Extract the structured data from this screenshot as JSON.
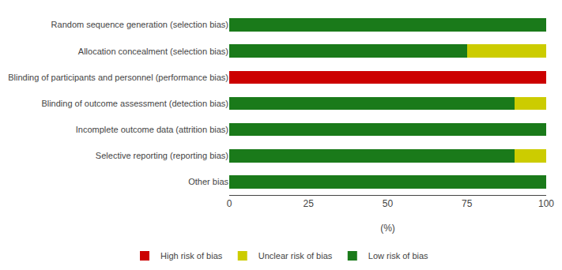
{
  "chart_data": {
    "type": "bar",
    "orientation": "horizontal",
    "stacked": true,
    "categories": [
      "Random sequence generation (selection bias)",
      "Allocation concealment (selection bias)",
      "Blinding of participants and personnel (performance bias)",
      "Blinding of outcome assessment (detection bias)",
      "Incomplete outcome data (attrition bias)",
      "Selective reporting (reporting bias)",
      "Other bias"
    ],
    "series": [
      {
        "name": "Low risk of bias",
        "color": "#1a7a1a",
        "values": [
          100,
          75,
          0,
          90,
          100,
          90,
          100
        ]
      },
      {
        "name": "Unclear risk of bias",
        "color": "#cccc00",
        "values": [
          0,
          25,
          0,
          10,
          0,
          10,
          0
        ]
      },
      {
        "name": "High risk of bias",
        "color": "#cc0000",
        "values": [
          0,
          0,
          100,
          0,
          0,
          0,
          0
        ]
      }
    ],
    "xlabel": "(%)",
    "xlim": [
      0,
      100
    ],
    "xticks": [
      0,
      25,
      50,
      75,
      100
    ],
    "grid": false,
    "legend": "bottom"
  }
}
